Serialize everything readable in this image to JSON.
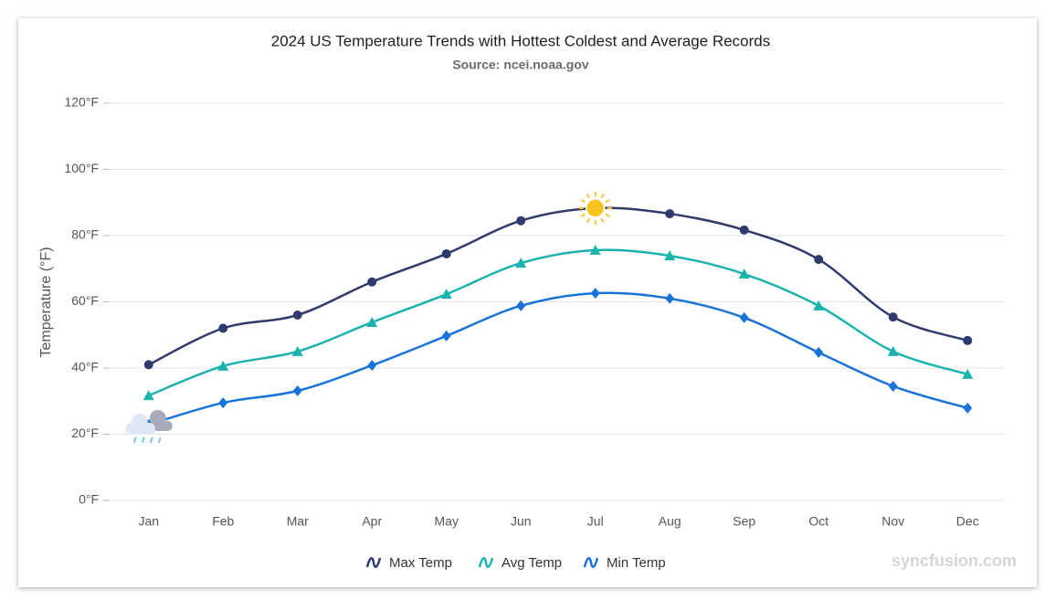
{
  "chart_data": {
    "type": "line",
    "title": "2024 US Temperature Trends with Hottest Coldest and Average Records",
    "subtitle": "Source: ncei.noaa.gov",
    "y_label": "Temperature (°F)",
    "watermark": "syncfusion.com",
    "categories": [
      "Jan",
      "Feb",
      "Mar",
      "Apr",
      "May",
      "Jun",
      "Jul",
      "Aug",
      "Sep",
      "Oct",
      "Nov",
      "Dec"
    ],
    "series": [
      {
        "name": "Max Temp",
        "color": "#2f3b6c",
        "marker": "circle",
        "values": [
          41,
          52,
          56,
          66,
          74.5,
          84.5,
          88.3,
          86.6,
          81.7,
          72.8,
          55.4,
          48.3
        ]
      },
      {
        "name": "Avg Temp",
        "color": "#1cb2ad",
        "marker": "triangle",
        "values": [
          31.7,
          40.6,
          45,
          53.8,
          62.3,
          71.7,
          75.6,
          73.9,
          68.4,
          58.8,
          45,
          38.1
        ]
      },
      {
        "name": "Min Temp",
        "color": "#1a73d9",
        "marker": "diamond",
        "values": [
          22.9,
          29.5,
          33.1,
          40.8,
          49.7,
          58.8,
          62.6,
          61,
          55.2,
          44.7,
          34.5,
          27.9
        ]
      }
    ],
    "ylim": [
      0,
      120
    ],
    "yticks": [
      {
        "value": 0,
        "label": "0°F"
      },
      {
        "value": 20,
        "label": "20°F"
      },
      {
        "value": 40,
        "label": "40°F"
      },
      {
        "value": 60,
        "label": "60°F"
      },
      {
        "value": 80,
        "label": "80°F"
      },
      {
        "value": 100,
        "label": "100°F"
      },
      {
        "value": 120,
        "label": "120°F"
      }
    ],
    "grid": true,
    "legend": "bottom"
  }
}
